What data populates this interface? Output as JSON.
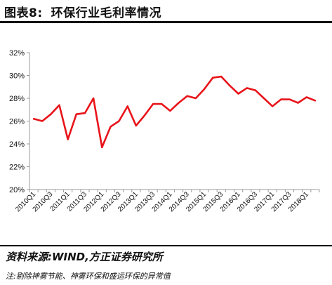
{
  "header": {
    "figure_label": "图表8:",
    "title": "环保行业毛利率情况"
  },
  "footer": {
    "source": "资料来源:WIND,方正证券研究所",
    "note": "注:剔除神雾节能、神雾环保和盛运环保的异常值"
  },
  "colors": {
    "line": "#e8141a",
    "axis": "#999999",
    "text": "#111111"
  },
  "chart_data": {
    "type": "line",
    "title": "",
    "xlabel": "",
    "ylabel": "",
    "ylim": [
      20,
      32
    ],
    "ytick_values": [
      20,
      22,
      24,
      26,
      28,
      30,
      32
    ],
    "ytick_labels": [
      "20%",
      "22%",
      "24%",
      "26%",
      "28%",
      "30%",
      "32%"
    ],
    "grid": false,
    "categories": [
      "2010Q1",
      "2010Q2",
      "2010Q3",
      "2010Q4",
      "2011Q1",
      "2011Q2",
      "2011Q3",
      "2011Q4",
      "2012Q1",
      "2012Q2",
      "2012Q3",
      "2012Q4",
      "2013Q1",
      "2013Q2",
      "2013Q3",
      "2013Q4",
      "2014Q1",
      "2014Q2",
      "2014Q3",
      "2014Q4",
      "2015Q1",
      "2015Q2",
      "2015Q3",
      "2015Q4",
      "2016Q1",
      "2016Q2",
      "2016Q3",
      "2016Q4",
      "2017Q1",
      "2017Q2",
      "2017Q3",
      "2017Q4",
      "2018Q1",
      "2018Q2"
    ],
    "xtick_labels": [
      "2010Q1",
      "2010Q3",
      "2011Q1",
      "2011Q3",
      "2012Q1",
      "2012Q3",
      "2013Q1",
      "2013Q3",
      "2014Q1",
      "2014Q3",
      "2015Q1",
      "2015Q3",
      "2016Q1",
      "2016Q3",
      "2017Q1",
      "2017Q3",
      "2018Q1"
    ],
    "series": [
      {
        "values": [
          26.2,
          26.0,
          26.6,
          27.4,
          24.4,
          26.6,
          26.7,
          28.0,
          23.7,
          25.5,
          26.0,
          27.3,
          25.6,
          26.5,
          27.5,
          27.5,
          26.9,
          27.6,
          28.2,
          28.0,
          28.8,
          29.8,
          29.9,
          29.1,
          28.4,
          28.9,
          28.7,
          28.0,
          27.3,
          27.9,
          27.9,
          27.6,
          28.1,
          27.8
        ]
      }
    ]
  }
}
